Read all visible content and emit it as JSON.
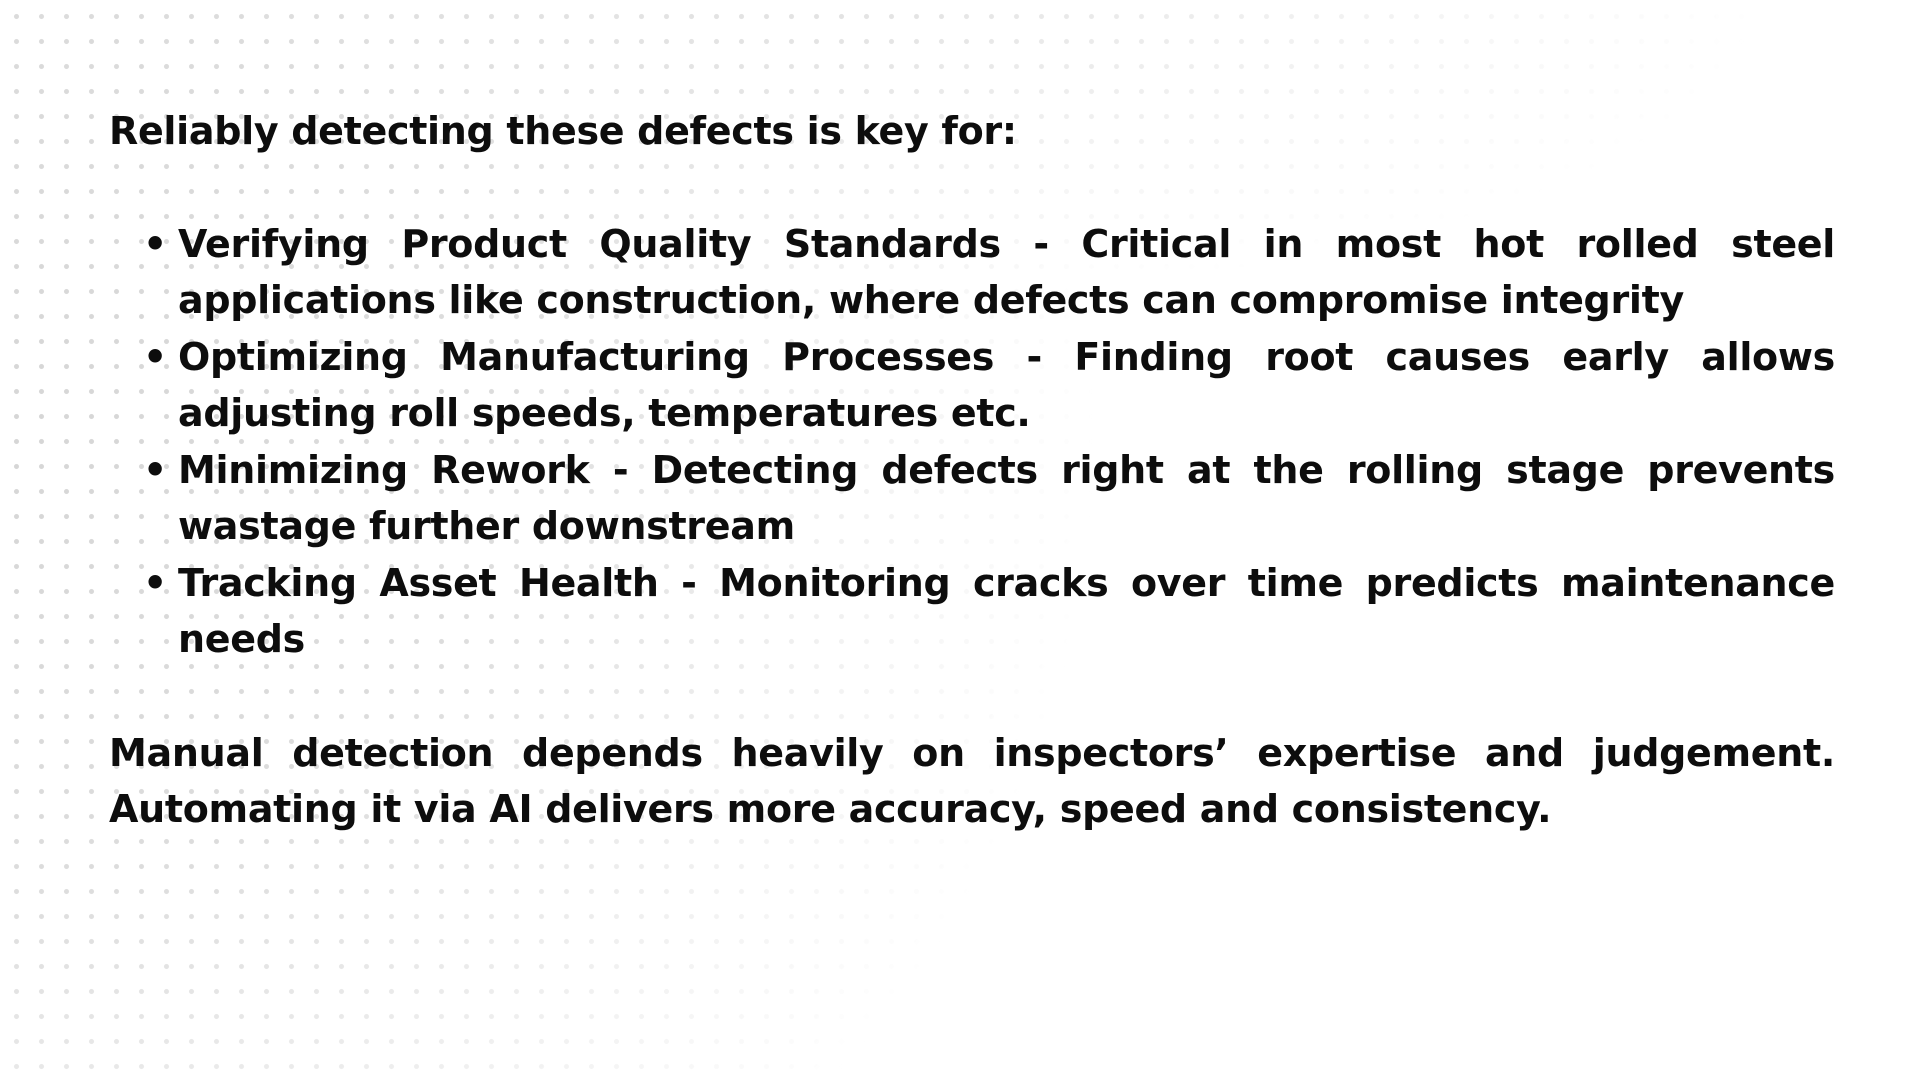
{
  "intro": "Reliably detecting these defects is key for:",
  "bullet_symbol": "•",
  "benefits": [
    {
      "text": "Verifying Product Quality Standards - Critical in most hot rolled steel applications like construction, where defects can compromise integrity"
    },
    {
      "text": "Optimizing Manufacturing Processes - Finding root causes early allows adjusting roll speeds, temperatures etc."
    },
    {
      "text": "Minimizing Rework - Detecting defects right at the rolling stage prevents wastage further downstream"
    },
    {
      "text": "Tracking Asset Health - Monitoring cracks over time predicts maintenance needs"
    }
  ],
  "closing": "Manual detection depends heavily on inspectors’ expertise and judgement. Automating it via AI delivers more accuracy, speed and consistency.",
  "colors": {
    "text": "#0d0d0d",
    "background": "#ffffff",
    "dots": "#d6d6d6"
  }
}
